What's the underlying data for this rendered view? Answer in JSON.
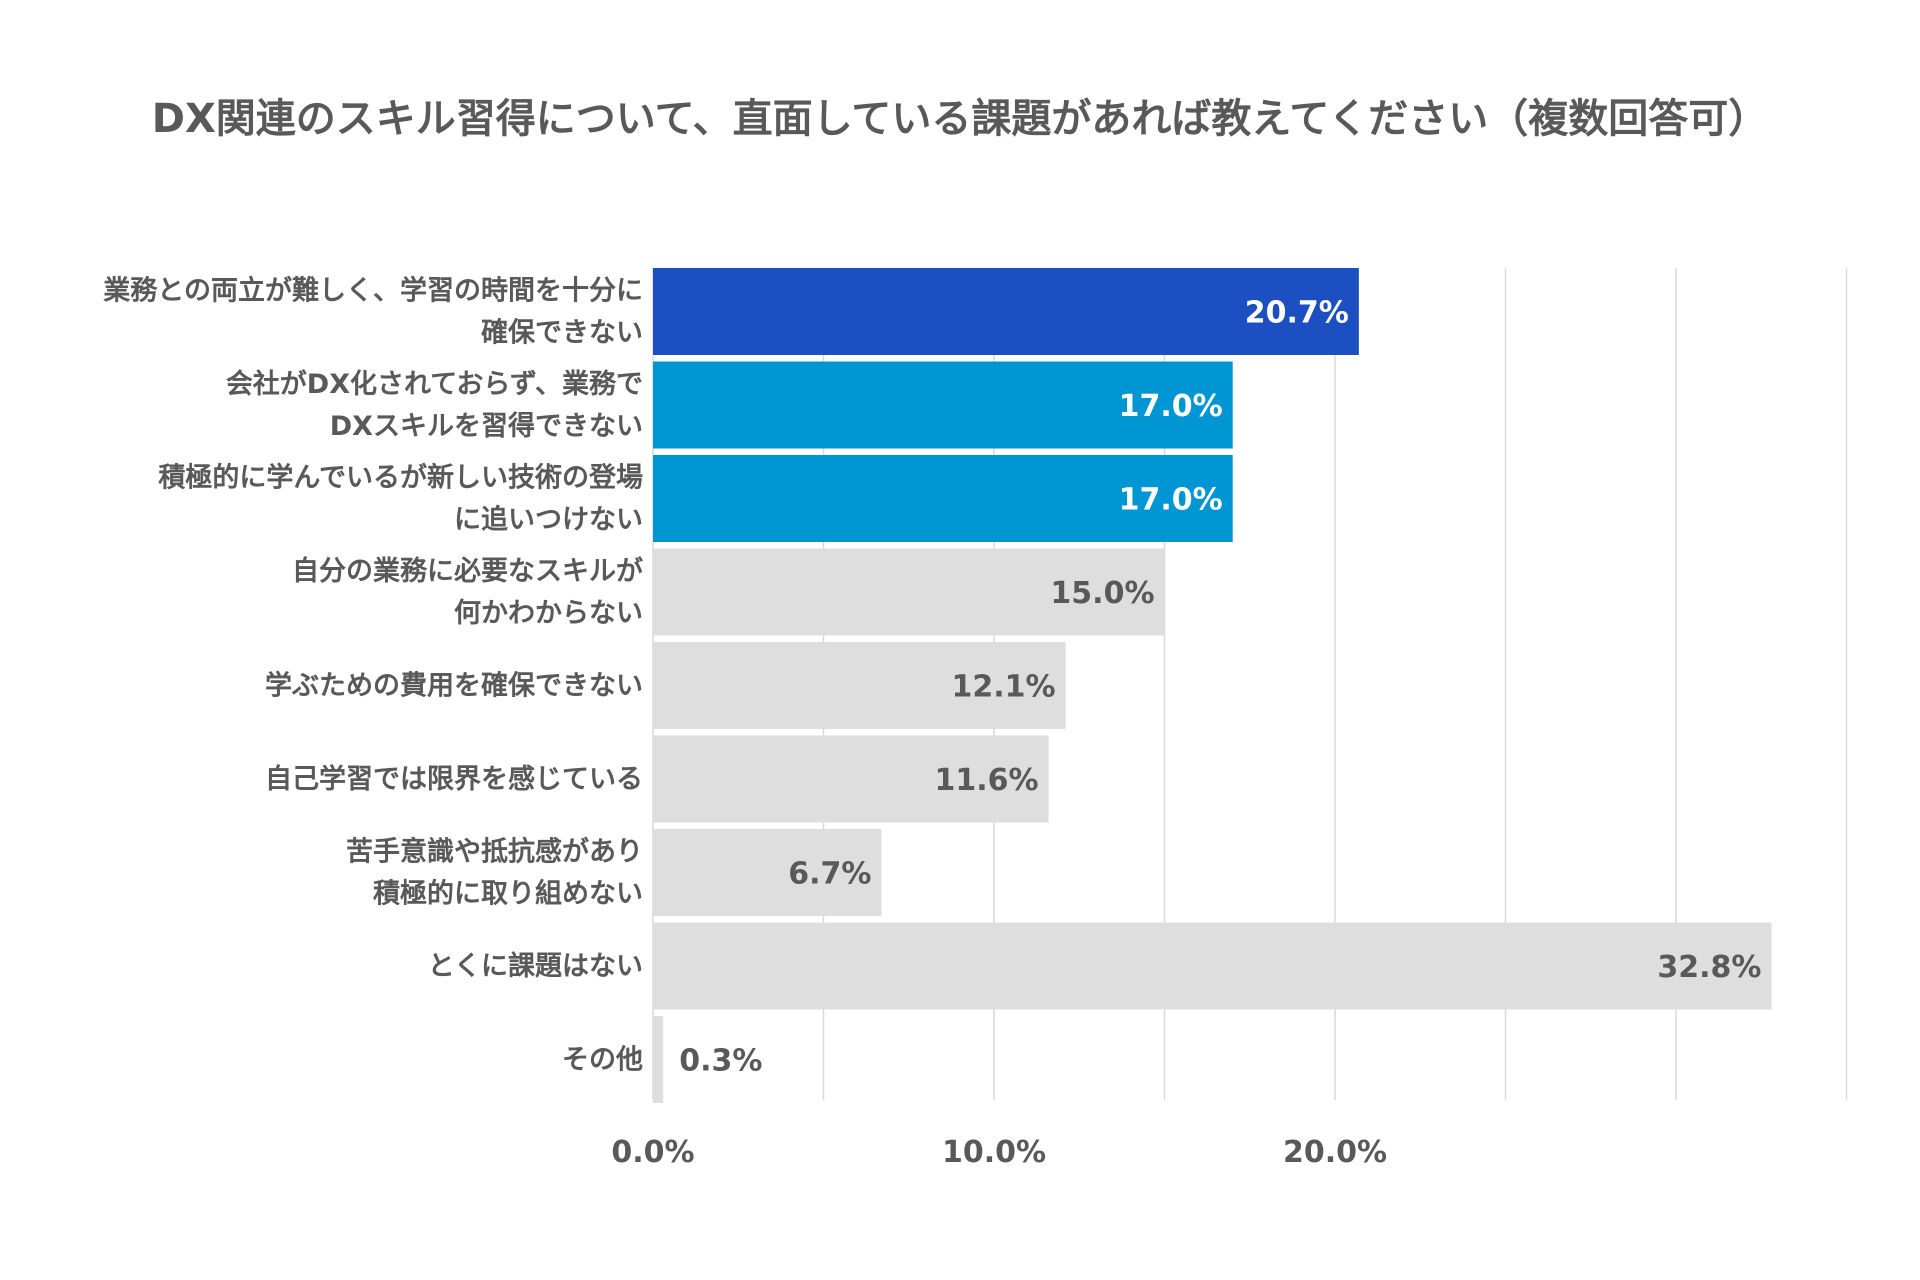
{
  "chart_data": {
    "type": "bar",
    "orientation": "horizontal",
    "title": "DX関連のスキル習得について、直面している課題があれば教えてください（複数回答可）",
    "xlabel": "",
    "ylabel": "",
    "xlim": [
      0,
      35
    ],
    "grid": true,
    "legend": "none",
    "categories": [
      [
        "業務との両立が難しく、学習の時間を十分に",
        "確保できない"
      ],
      [
        "会社がDX化されておらず、業務で",
        "DXスキルを習得できない"
      ],
      [
        "積極的に学んでいるが新しい技術の登場",
        "に追いつけない"
      ],
      [
        "自分の業務に必要なスキルが",
        "何かわからない"
      ],
      [
        "学ぶための費用を確保できない"
      ],
      [
        "自己学習では限界を感じている"
      ],
      [
        "苦手意識や抵抗感があり",
        "積極的に取り組めない"
      ],
      [
        "とくに課題はない"
      ],
      [
        "その他"
      ]
    ],
    "values": [
      20.7,
      17.0,
      17.0,
      15.0,
      12.1,
      11.6,
      6.7,
      32.8,
      0.3
    ],
    "value_labels": [
      "20.7%",
      "17.0%",
      "17.0%",
      "15.0%",
      "12.1%",
      "11.6%",
      "6.7%",
      "32.8%",
      "0.3%"
    ],
    "bar_colors": [
      "#1b4fc2",
      "#0096d3",
      "#0096d3",
      "#dedede",
      "#dedede",
      "#dedede",
      "#dedede",
      "#dedede",
      "#dedede"
    ],
    "label_colors": [
      "#ffffff",
      "#ffffff",
      "#ffffff",
      "#595959",
      "#595959",
      "#595959",
      "#595959",
      "#595959",
      "#595959"
    ],
    "gridlines": [
      0,
      5,
      10,
      15,
      20,
      25,
      30,
      35
    ],
    "ticks": [
      {
        "value": 0,
        "label": "0.0%"
      },
      {
        "value": 10,
        "label": "10.0%"
      },
      {
        "value": 20,
        "label": "20.0%"
      }
    ]
  }
}
